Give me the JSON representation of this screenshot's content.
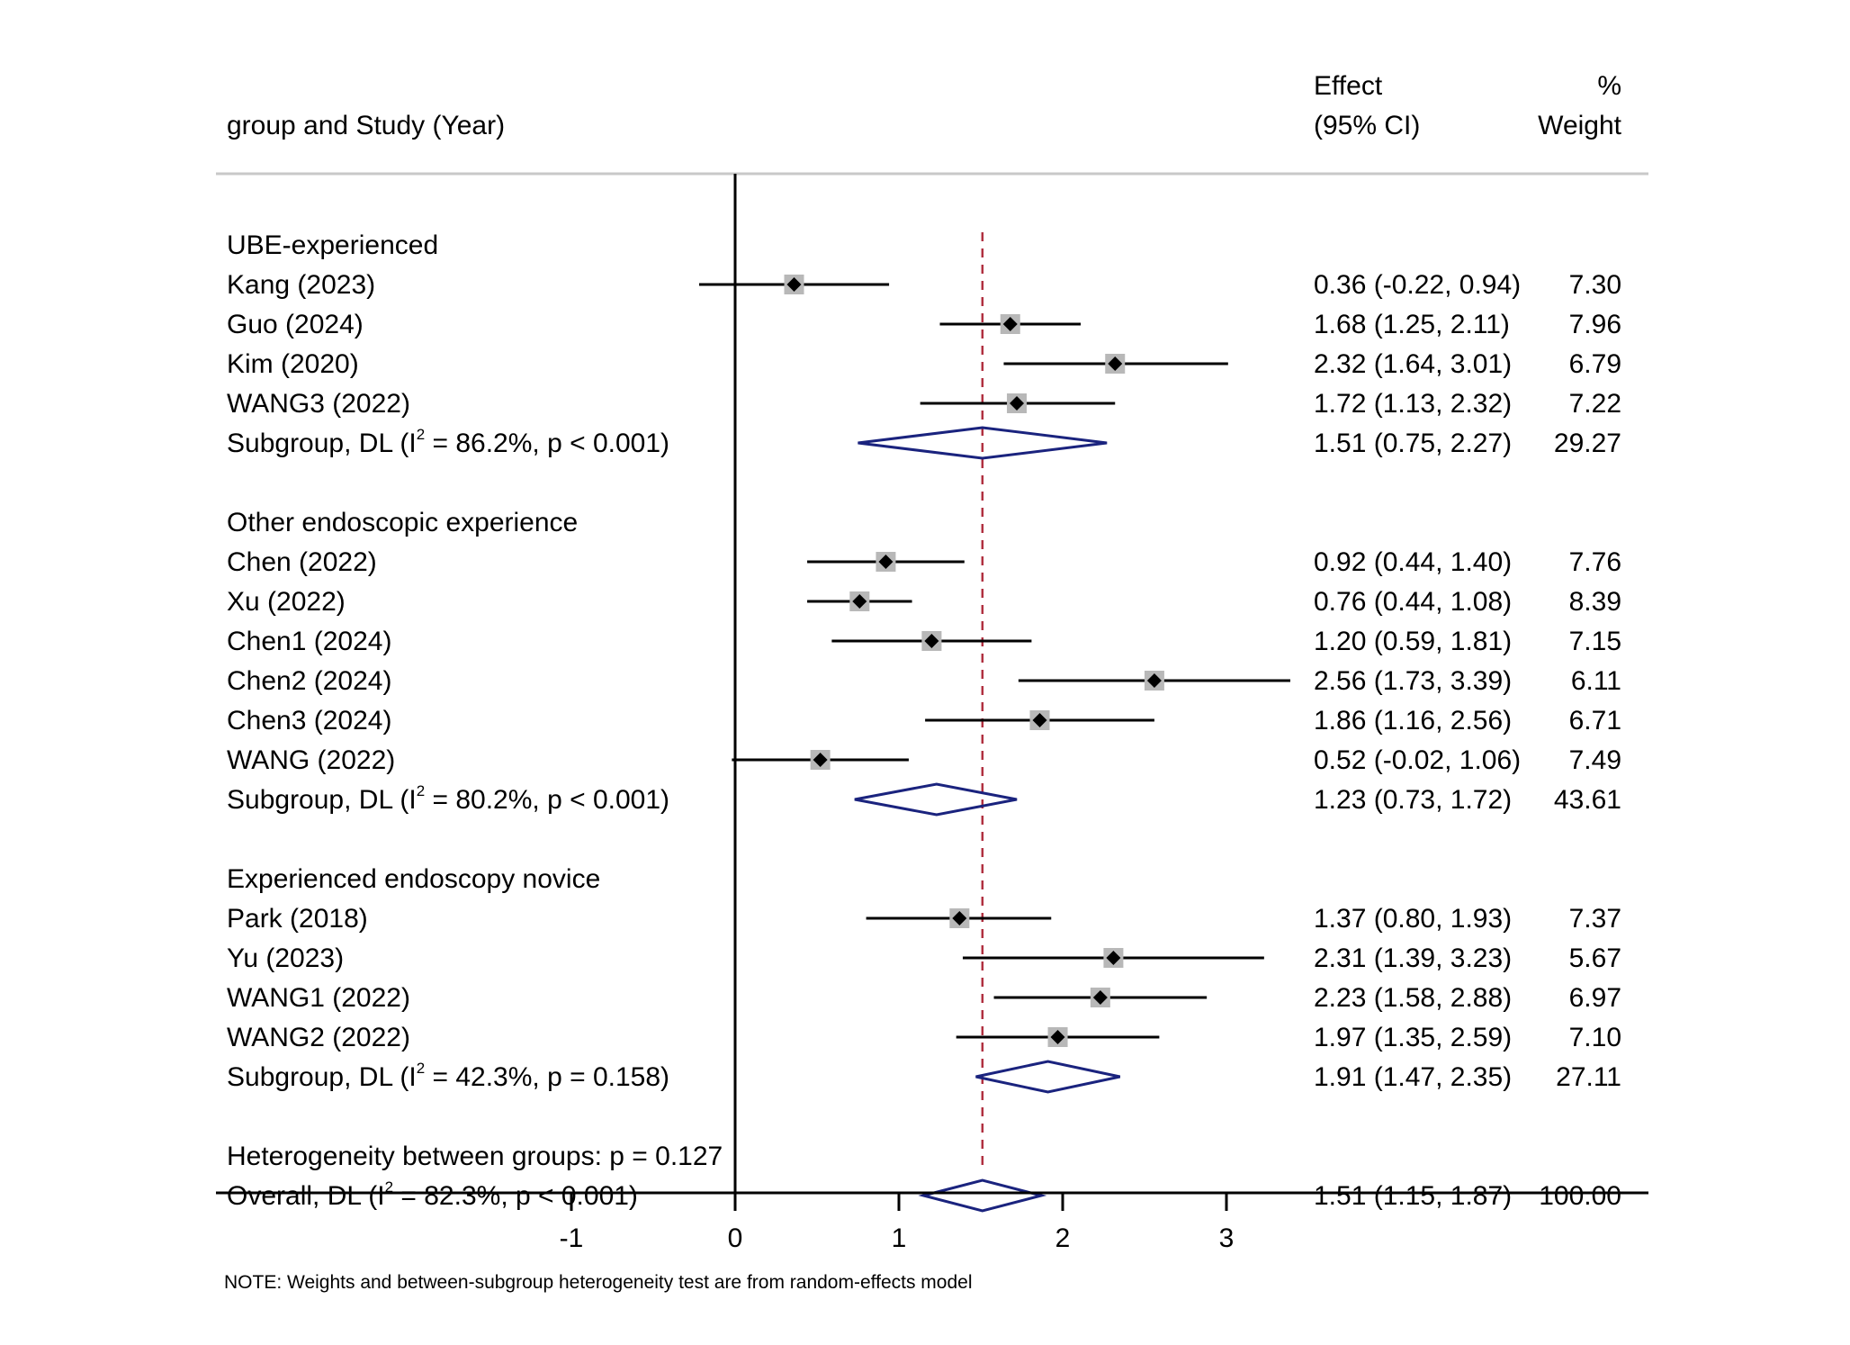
{
  "chart_data": {
    "type": "forest",
    "headers": {
      "study": "group and Study (Year)",
      "effect_line1": "Effect",
      "effect_line2": "(95% CI)",
      "weight_line1": "%",
      "weight_line2": "Weight"
    },
    "xaxis": {
      "ticks": [
        -1,
        0,
        1,
        2,
        3
      ],
      "range": [
        -1.5,
        5.5
      ]
    },
    "null_line": 0,
    "overall_line": 1.51,
    "colors": {
      "summary": "#1a237e",
      "overall_line": "#b03040",
      "box": "#b8b8b8",
      "marker": "#000000"
    },
    "groups": [
      {
        "name": "UBE-experienced",
        "studies": [
          {
            "label": "Kang (2023)",
            "effect": 0.36,
            "lower": -0.22,
            "upper": 0.94,
            "ci_text": "0.36 (-0.22, 0.94)",
            "weight": 7.3,
            "weight_text": "7.30"
          },
          {
            "label": "Guo (2024)",
            "effect": 1.68,
            "lower": 1.25,
            "upper": 2.11,
            "ci_text": "1.68 (1.25, 2.11)",
            "weight": 7.96,
            "weight_text": "7.96"
          },
          {
            "label": "Kim (2020)",
            "effect": 2.32,
            "lower": 1.64,
            "upper": 3.01,
            "ci_text": "2.32 (1.64, 3.01)",
            "weight": 6.79,
            "weight_text": "6.79"
          },
          {
            "label": "WANG3 (2022)",
            "effect": 1.72,
            "lower": 1.13,
            "upper": 2.32,
            "ci_text": "1.72 (1.13, 2.32)",
            "weight": 7.22,
            "weight_text": "7.22"
          }
        ],
        "subgroup": {
          "prefix": "Subgroup, DL (I",
          "sup": "2",
          "suffix": " = 86.2%, p < 0.001)",
          "effect": 1.51,
          "lower": 0.75,
          "upper": 2.27,
          "ci_text": "1.51 (0.75, 2.27)",
          "weight_text": "29.27"
        }
      },
      {
        "name": "Other endoscopic experience",
        "studies": [
          {
            "label": "Chen (2022)",
            "effect": 0.92,
            "lower": 0.44,
            "upper": 1.4,
            "ci_text": "0.92 (0.44, 1.40)",
            "weight": 7.76,
            "weight_text": "7.76"
          },
          {
            "label": "Xu (2022)",
            "effect": 0.76,
            "lower": 0.44,
            "upper": 1.08,
            "ci_text": "0.76 (0.44, 1.08)",
            "weight": 8.39,
            "weight_text": "8.39"
          },
          {
            "label": "Chen1 (2024)",
            "effect": 1.2,
            "lower": 0.59,
            "upper": 1.81,
            "ci_text": "1.20 (0.59, 1.81)",
            "weight": 7.15,
            "weight_text": "7.15"
          },
          {
            "label": "Chen2 (2024)",
            "effect": 2.56,
            "lower": 1.73,
            "upper": 3.39,
            "ci_text": "2.56 (1.73, 3.39)",
            "weight": 6.11,
            "weight_text": "6.11"
          },
          {
            "label": "Chen3 (2024)",
            "effect": 1.86,
            "lower": 1.16,
            "upper": 2.56,
            "ci_text": "1.86 (1.16, 2.56)",
            "weight": 6.71,
            "weight_text": "6.71"
          },
          {
            "label": "WANG (2022)",
            "effect": 0.52,
            "lower": -0.02,
            "upper": 1.06,
            "ci_text": "0.52 (-0.02, 1.06)",
            "weight": 7.49,
            "weight_text": "7.49"
          }
        ],
        "subgroup": {
          "prefix": "Subgroup, DL (I",
          "sup": "2",
          "suffix": " = 80.2%, p < 0.001)",
          "effect": 1.23,
          "lower": 0.73,
          "upper": 1.72,
          "ci_text": "1.23 (0.73, 1.72)",
          "weight_text": "43.61"
        }
      },
      {
        "name": "Experienced endoscopy novice",
        "studies": [
          {
            "label": "Park (2018)",
            "effect": 1.37,
            "lower": 0.8,
            "upper": 1.93,
            "ci_text": "1.37 (0.80, 1.93)",
            "weight": 7.37,
            "weight_text": "7.37"
          },
          {
            "label": "Yu (2023)",
            "effect": 2.31,
            "lower": 1.39,
            "upper": 3.23,
            "ci_text": "2.31 (1.39, 3.23)",
            "weight": 5.67,
            "weight_text": "5.67"
          },
          {
            "label": "WANG1 (2022)",
            "effect": 2.23,
            "lower": 1.58,
            "upper": 2.88,
            "ci_text": "2.23 (1.58, 2.88)",
            "weight": 6.97,
            "weight_text": "6.97"
          },
          {
            "label": "WANG2 (2022)",
            "effect": 1.97,
            "lower": 1.35,
            "upper": 2.59,
            "ci_text": "1.97 (1.35, 2.59)",
            "weight": 7.1,
            "weight_text": "7.10"
          }
        ],
        "subgroup": {
          "prefix": "Subgroup, DL (I",
          "sup": "2",
          "suffix": " = 42.3%, p = 0.158)",
          "effect": 1.91,
          "lower": 1.47,
          "upper": 2.35,
          "ci_text": "1.91 (1.47, 2.35)",
          "weight_text": "27.11"
        }
      }
    ],
    "heterogeneity_text": "Heterogeneity between groups: p = 0.127",
    "overall": {
      "prefix": "Overall, DL (I",
      "sup": "2",
      "suffix": " = 82.3%, p < 0.001)",
      "effect": 1.51,
      "lower": 1.15,
      "upper": 1.87,
      "ci_text": "1.51 (1.15, 1.87)",
      "weight_text": "100.00"
    },
    "note": "NOTE: Weights and between-subgroup heterogeneity test are from random-effects model"
  }
}
